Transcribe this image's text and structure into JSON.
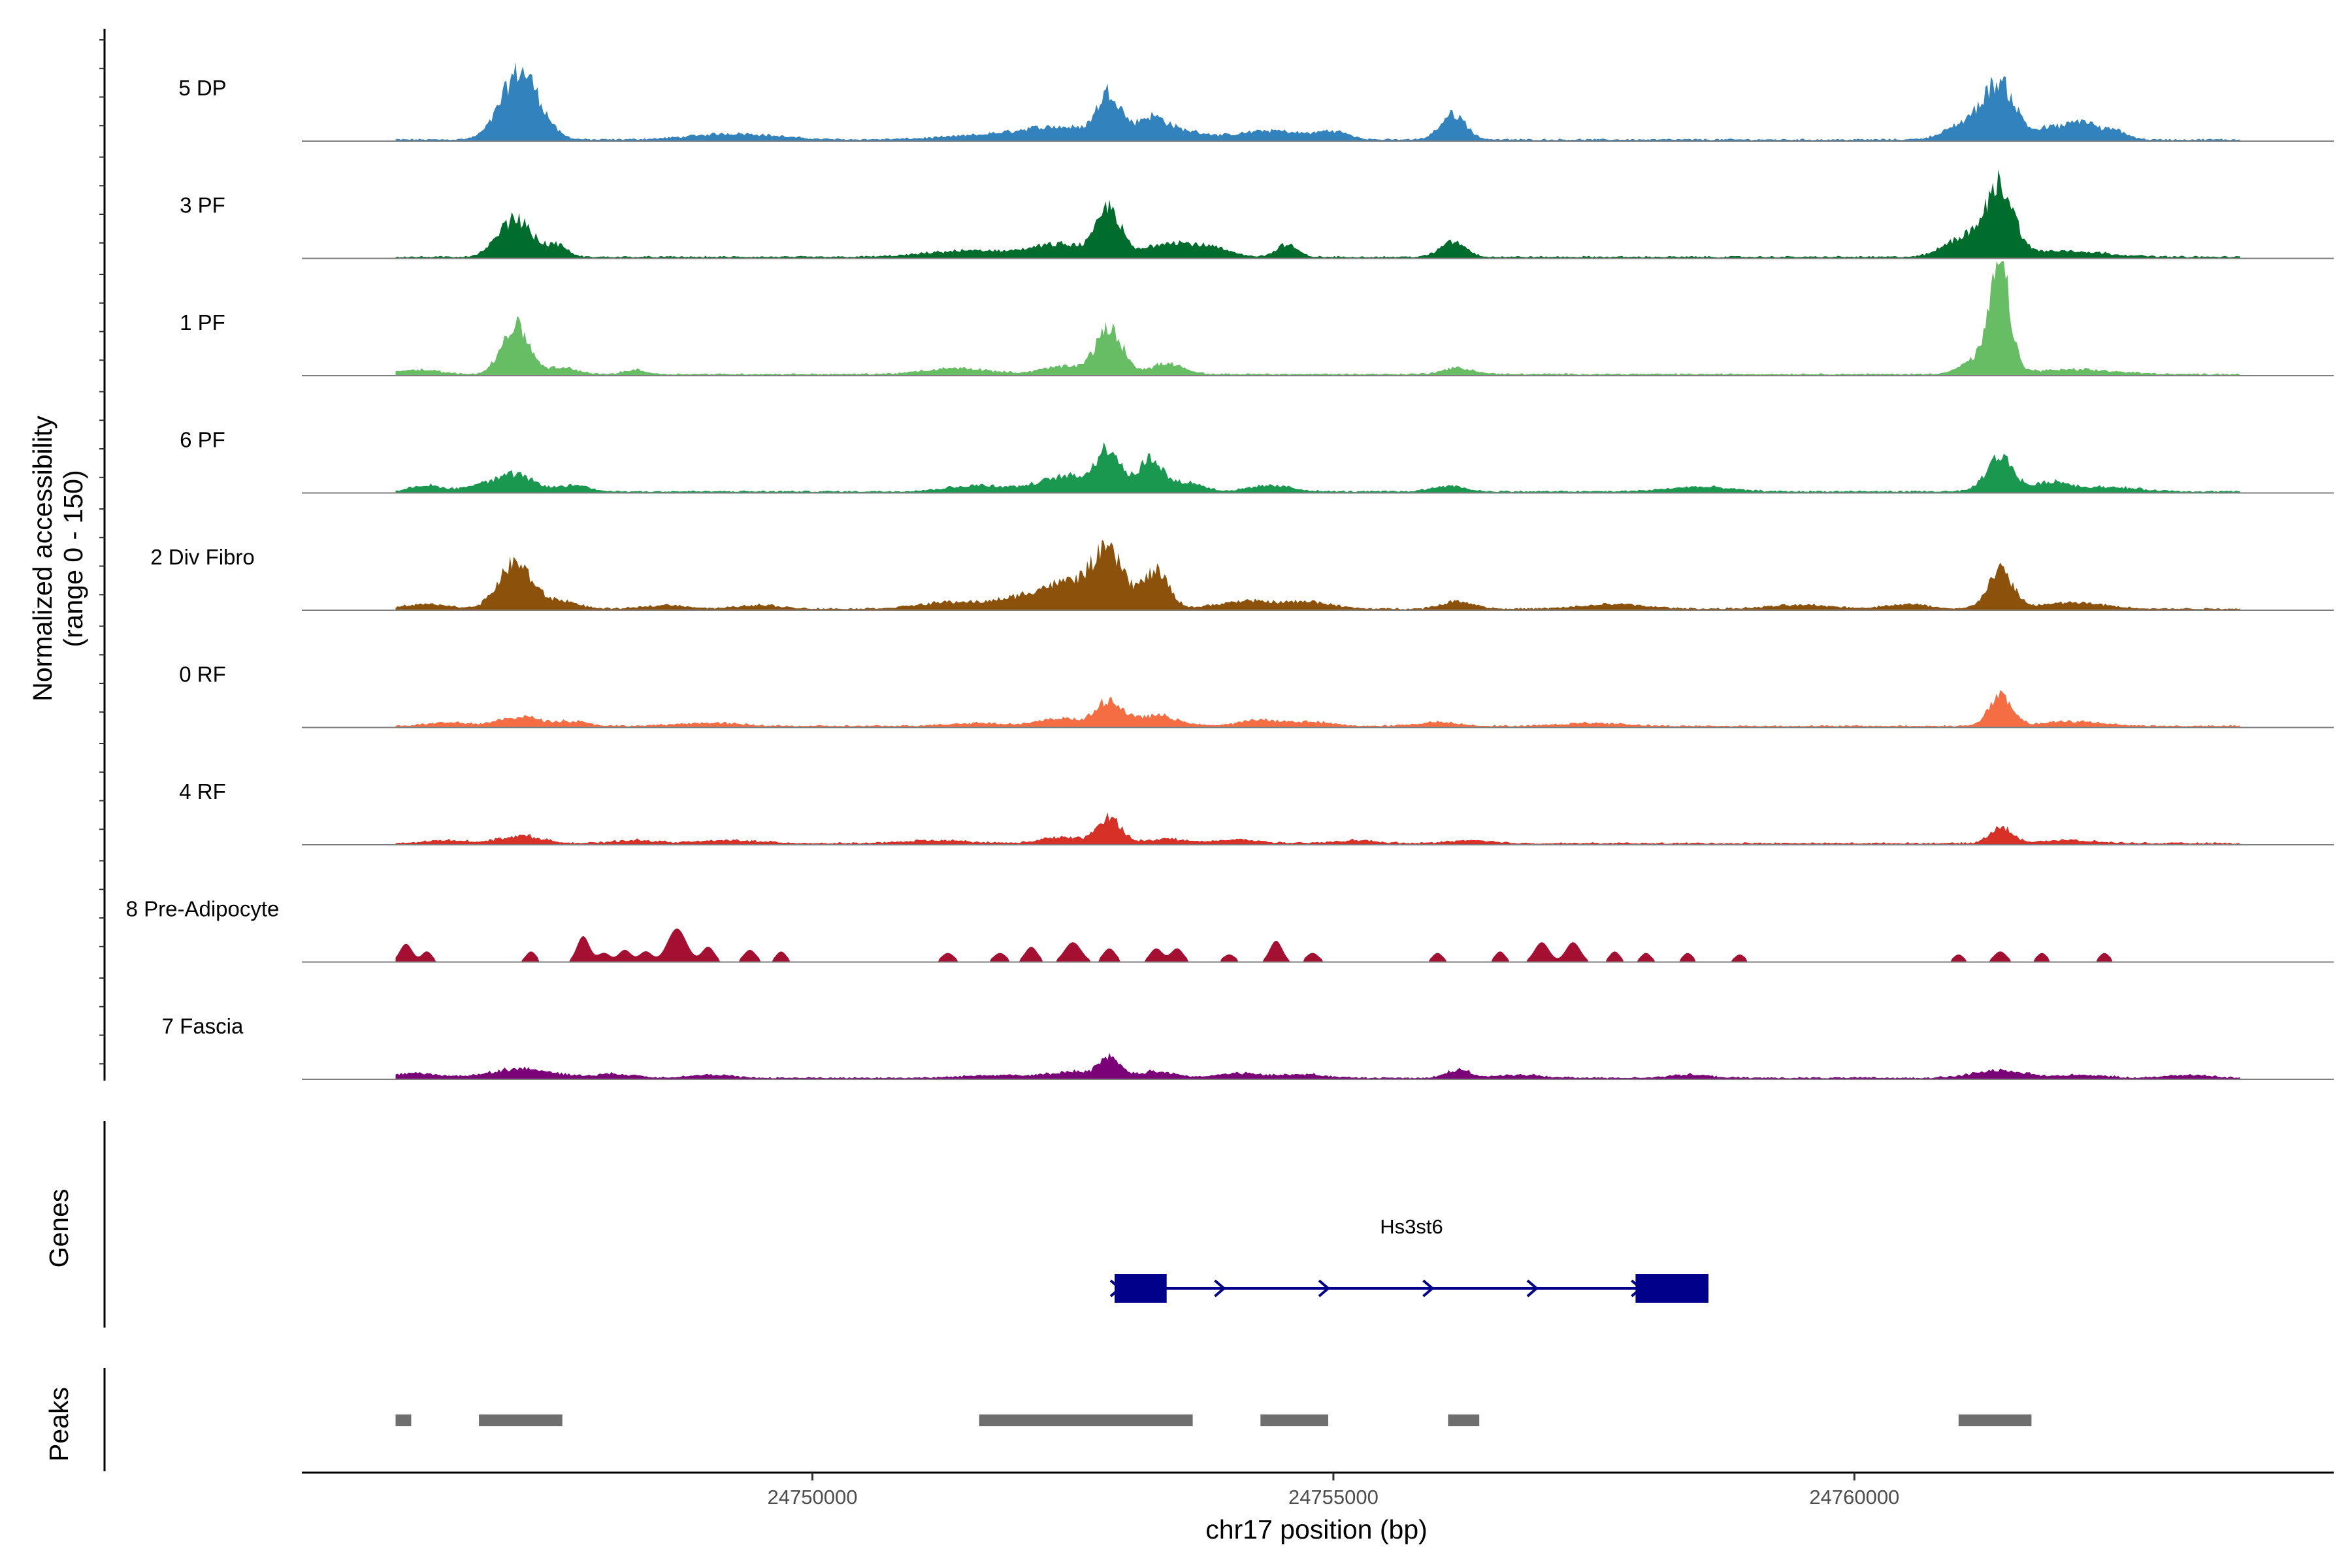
{
  "chart_data": {
    "type": "area",
    "title": "",
    "chromosome": "chr17",
    "xlabel": "chr17 position (bp)",
    "ylabel_line1": "Normalized accessibility",
    "ylabel_line2": "(range 0 - 150)",
    "ylim": [
      0,
      150
    ],
    "xlim": [
      24745100,
      24764600
    ],
    "x_ticks": [
      24750000,
      24755000,
      24760000
    ],
    "x_tick_labels": [
      "24750000",
      "24755000",
      "24760000"
    ],
    "data_start": 24746000,
    "data_end": 24763700,
    "genes_label": "Genes",
    "peaks_label": "Peaks",
    "tracks": [
      {
        "name": "5 DP",
        "color": "#3182bd",
        "peaks": [
          [
            24747200,
            90,
            180
          ],
          [
            24749250,
            8,
            400
          ],
          [
            24751800,
            6,
            500
          ],
          [
            24752400,
            14,
            350
          ],
          [
            24752850,
            56,
            110
          ],
          [
            24753250,
            28,
            150
          ],
          [
            24753600,
            10,
            200
          ],
          [
            24754400,
            12,
            300
          ],
          [
            24755000,
            10,
            150
          ],
          [
            24756150,
            34,
            120
          ],
          [
            24761400,
            68,
            150
          ],
          [
            24761100,
            22,
            200
          ],
          [
            24761900,
            16,
            150
          ],
          [
            24762200,
            22,
            120
          ],
          [
            24762500,
            12,
            120
          ]
        ]
      },
      {
        "name": "3 PF",
        "color": "#006d2c",
        "peaks": [
          [
            24747150,
            50,
            160
          ],
          [
            24747550,
            14,
            100
          ],
          [
            24751500,
            8,
            400
          ],
          [
            24752400,
            16,
            300
          ],
          [
            24752850,
            60,
            110
          ],
          [
            24753400,
            18,
            200
          ],
          [
            24753800,
            12,
            200
          ],
          [
            24754550,
            16,
            100
          ],
          [
            24756150,
            20,
            120
          ],
          [
            24761400,
            90,
            130
          ],
          [
            24761050,
            26,
            180
          ],
          [
            24762000,
            8,
            400
          ]
        ]
      },
      {
        "name": "1 PF",
        "color": "#66bd63",
        "peaks": [
          [
            24747150,
            64,
            130
          ],
          [
            24746200,
            6,
            200
          ],
          [
            24747600,
            8,
            150
          ],
          [
            24748300,
            6,
            100
          ],
          [
            24751400,
            8,
            300
          ],
          [
            24752400,
            10,
            200
          ],
          [
            24752850,
            58,
            130
          ],
          [
            24753400,
            14,
            150
          ],
          [
            24756200,
            8,
            150
          ],
          [
            24761400,
            128,
            90
          ],
          [
            24761250,
            24,
            180
          ],
          [
            24762100,
            6,
            400
          ]
        ]
      },
      {
        "name": "6 PF",
        "color": "#1a9850",
        "peaks": [
          [
            24747150,
            22,
            170
          ],
          [
            24746300,
            8,
            150
          ],
          [
            24746800,
            8,
            150
          ],
          [
            24747700,
            8,
            150
          ],
          [
            24751600,
            8,
            300
          ],
          [
            24752450,
            20,
            250
          ],
          [
            24752850,
            52,
            120
          ],
          [
            24753250,
            44,
            110
          ],
          [
            24753600,
            12,
            150
          ],
          [
            24754400,
            8,
            200
          ],
          [
            24756100,
            8,
            150
          ],
          [
            24758500,
            6,
            300
          ],
          [
            24761400,
            46,
            130
          ],
          [
            24761900,
            12,
            150
          ],
          [
            24762400,
            6,
            300
          ]
        ]
      },
      {
        "name": "2 Div Fibro",
        "color": "#8c510a",
        "peaks": [
          [
            24747150,
            60,
            160
          ],
          [
            24746300,
            6,
            200
          ],
          [
            24747600,
            10,
            150
          ],
          [
            24748600,
            5,
            200
          ],
          [
            24749500,
            5,
            200
          ],
          [
            24751300,
            8,
            300
          ],
          [
            24752000,
            10,
            300
          ],
          [
            24752500,
            32,
            300
          ],
          [
            24752850,
            60,
            150
          ],
          [
            24753300,
            48,
            120
          ],
          [
            24754200,
            10,
            300
          ],
          [
            24754800,
            8,
            200
          ],
          [
            24756200,
            10,
            150
          ],
          [
            24757700,
            6,
            300
          ],
          [
            24759500,
            5,
            300
          ],
          [
            24760500,
            6,
            200
          ],
          [
            24761400,
            50,
            120
          ],
          [
            24762100,
            8,
            300
          ]
        ]
      },
      {
        "name": "0 RF",
        "color": "#f46d43",
        "peaks": [
          [
            24746500,
            5,
            200
          ],
          [
            24747200,
            12,
            200
          ],
          [
            24747700,
            6,
            150
          ],
          [
            24749000,
            4,
            300
          ],
          [
            24751600,
            4,
            300
          ],
          [
            24752400,
            10,
            200
          ],
          [
            24752850,
            32,
            120
          ],
          [
            24753300,
            14,
            200
          ],
          [
            24754300,
            8,
            200
          ],
          [
            24754800,
            5,
            200
          ],
          [
            24756000,
            5,
            200
          ],
          [
            24757500,
            4,
            300
          ],
          [
            24761400,
            38,
            110
          ],
          [
            24762100,
            6,
            300
          ]
        ]
      },
      {
        "name": "4 RF",
        "color": "#d73027",
        "peaks": [
          [
            24746500,
            4,
            200
          ],
          [
            24747200,
            10,
            200
          ],
          [
            24748300,
            4,
            200
          ],
          [
            24749200,
            4,
            300
          ],
          [
            24751200,
            4,
            300
          ],
          [
            24752400,
            8,
            200
          ],
          [
            24752850,
            34,
            110
          ],
          [
            24753400,
            6,
            200
          ],
          [
            24754100,
            5,
            200
          ],
          [
            24755200,
            4,
            200
          ],
          [
            24756300,
            4,
            200
          ],
          [
            24761400,
            22,
            100
          ],
          [
            24762000,
            4,
            300
          ]
        ]
      },
      {
        "name": "8 Pre-Adipocyte",
        "color": "#a50f32",
        "peaks": [
          [
            24746100,
            24,
            60
          ],
          [
            24746300,
            14,
            50
          ],
          [
            24747300,
            14,
            50
          ],
          [
            24747800,
            34,
            60
          ],
          [
            24748000,
            12,
            60
          ],
          [
            24748200,
            16,
            60
          ],
          [
            24748400,
            14,
            60
          ],
          [
            24748700,
            44,
            90
          ],
          [
            24749000,
            20,
            60
          ],
          [
            24749400,
            16,
            60
          ],
          [
            24749700,
            14,
            50
          ],
          [
            24751300,
            12,
            60
          ],
          [
            24751800,
            12,
            60
          ],
          [
            24752100,
            20,
            60
          ],
          [
            24752500,
            26,
            80
          ],
          [
            24752850,
            18,
            60
          ],
          [
            24753300,
            18,
            60
          ],
          [
            24753500,
            18,
            60
          ],
          [
            24754000,
            10,
            60
          ],
          [
            24754450,
            28,
            60
          ],
          [
            24754800,
            12,
            60
          ],
          [
            24756000,
            12,
            50
          ],
          [
            24756600,
            14,
            50
          ],
          [
            24757000,
            26,
            70
          ],
          [
            24757300,
            26,
            70
          ],
          [
            24757700,
            14,
            50
          ],
          [
            24758000,
            12,
            50
          ],
          [
            24758400,
            12,
            50
          ],
          [
            24758900,
            10,
            50
          ],
          [
            24761000,
            10,
            50
          ],
          [
            24761400,
            14,
            60
          ],
          [
            24761800,
            12,
            50
          ],
          [
            24762400,
            12,
            50
          ]
        ]
      },
      {
        "name": "7 Fascia",
        "color": "#7a0177",
        "peaks": [
          [
            24746200,
            6,
            200
          ],
          [
            24747200,
            12,
            300
          ],
          [
            24748100,
            5,
            200
          ],
          [
            24749000,
            4,
            200
          ],
          [
            24751800,
            4,
            300
          ],
          [
            24752500,
            8,
            200
          ],
          [
            24752850,
            24,
            100
          ],
          [
            24753300,
            8,
            200
          ],
          [
            24754100,
            6,
            200
          ],
          [
            24754700,
            5,
            200
          ],
          [
            24756200,
            10,
            120
          ],
          [
            24756800,
            4,
            200
          ],
          [
            24758400,
            4,
            200
          ],
          [
            24761400,
            10,
            250
          ],
          [
            24762200,
            4,
            200
          ],
          [
            24763200,
            4,
            200
          ]
        ]
      }
    ],
    "gene": {
      "name": "Hs3st6",
      "start": 24752900,
      "end": 24758600,
      "strand": "+",
      "exons": [
        [
          24752900,
          24753400
        ],
        [
          24757900,
          24758600
        ]
      ]
    },
    "peak_regions": [
      [
        24746000,
        24746150
      ],
      [
        24746800,
        24747600
      ],
      [
        24751600,
        24753650
      ],
      [
        24754300,
        24754950
      ],
      [
        24756100,
        24756400
      ],
      [
        24761000,
        24761700
      ]
    ]
  }
}
